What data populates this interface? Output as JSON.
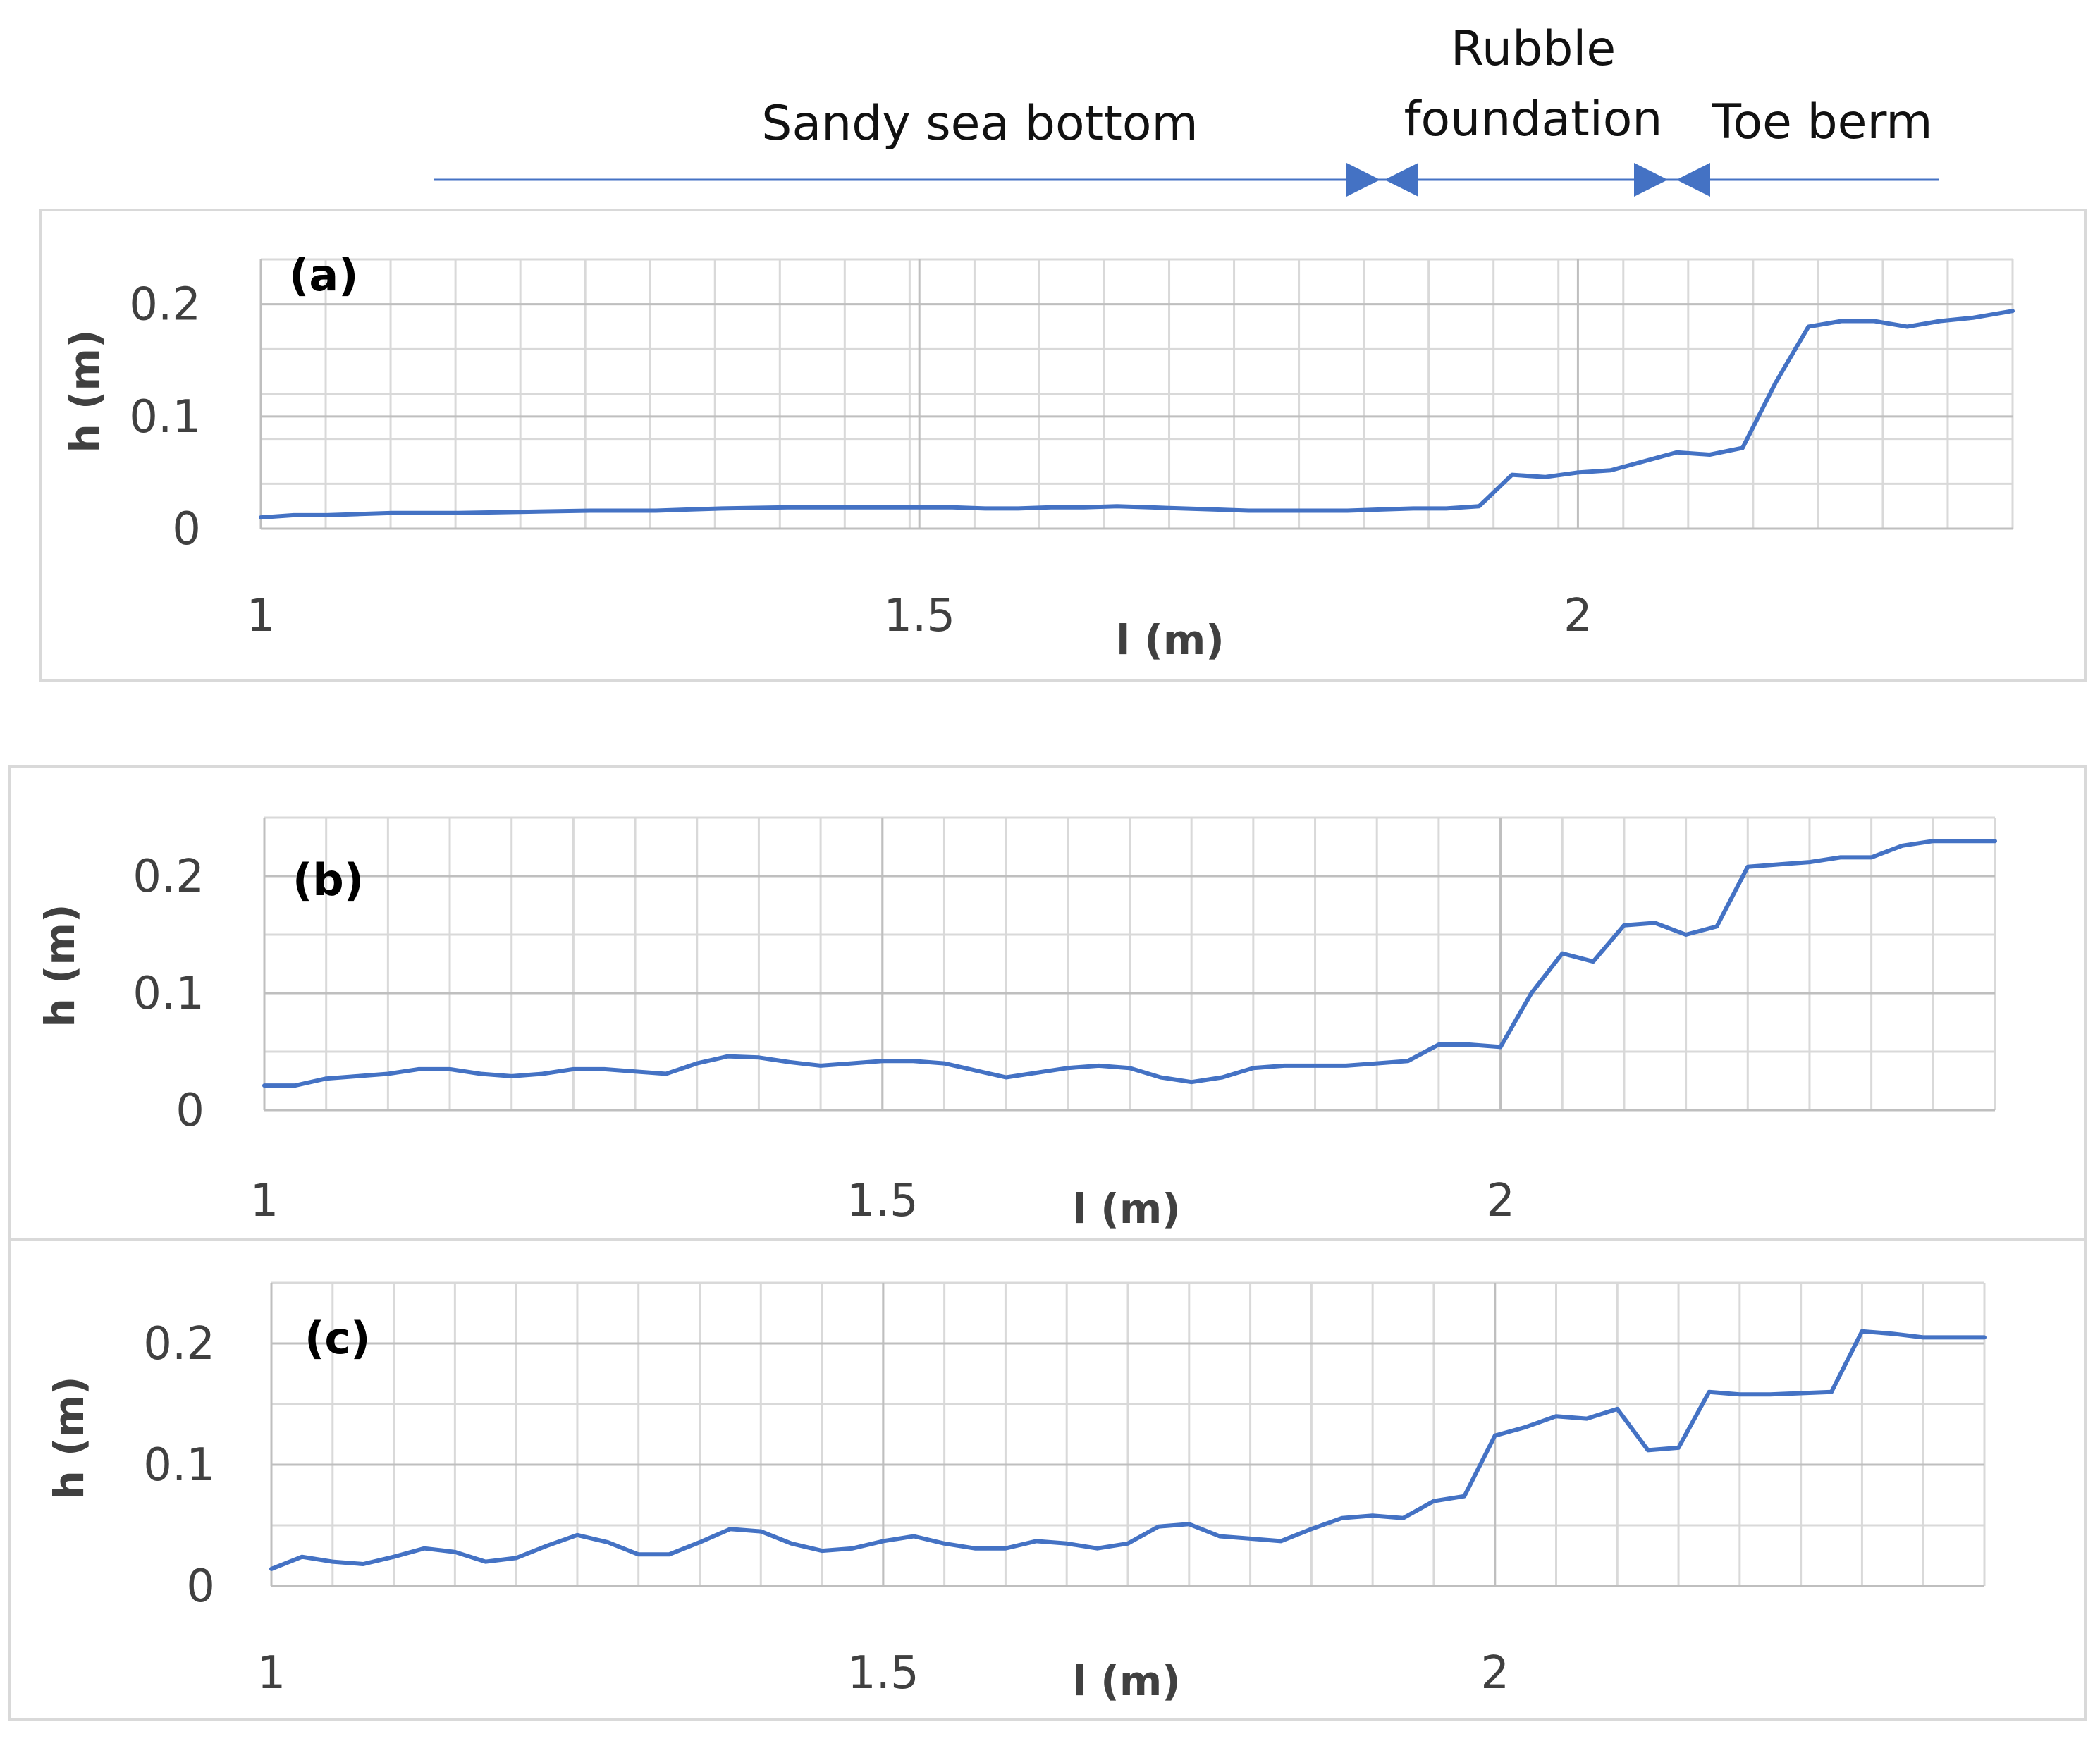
{
  "annotations": {
    "zones": [
      {
        "id": "sandy",
        "label": "Sandy sea bottom",
        "x_from": 1.14,
        "x_to": 1.885
      },
      {
        "id": "rubble",
        "label_line1": "Rubble",
        "label_line2": "foundation",
        "x_from": 1.885,
        "x_to": 2.125
      },
      {
        "id": "toe",
        "label": "Toe berm",
        "x_from": 2.125,
        "x_to": 2.36
      }
    ],
    "color": "#4472c4"
  },
  "chart_data": [
    {
      "type": "line",
      "panel_label": "(a)",
      "xlabel": "l (m)",
      "ylabel": "h (m)",
      "xlim": [
        1,
        2.33
      ],
      "ylim": [
        0,
        0.24
      ],
      "x_tick_labels": [
        "1",
        "1.5",
        "2"
      ],
      "y_tick_labels": [
        "0",
        "0.1",
        "0.2"
      ],
      "grid": true,
      "line_color": "#4472c4",
      "series": [
        {
          "x": [
            1.0,
            1.025,
            1.05,
            1.075,
            1.1,
            1.15,
            1.2,
            1.25,
            1.3,
            1.325,
            1.35,
            1.4,
            1.45,
            1.5,
            1.525,
            1.55,
            1.575,
            1.6,
            1.625,
            1.65,
            1.675,
            1.7,
            1.725,
            1.75,
            1.775,
            1.8,
            1.825,
            1.85,
            1.875,
            1.9,
            1.925,
            1.95,
            1.975,
            2.0,
            2.025,
            2.05,
            2.075,
            2.1,
            2.125,
            2.15,
            2.175,
            2.2,
            2.225,
            2.25,
            2.275,
            2.3,
            2.33
          ],
          "y": [
            0.01,
            0.012,
            0.012,
            0.013,
            0.014,
            0.014,
            0.015,
            0.016,
            0.016,
            0.017,
            0.018,
            0.019,
            0.019,
            0.019,
            0.019,
            0.018,
            0.018,
            0.019,
            0.019,
            0.02,
            0.019,
            0.018,
            0.017,
            0.016,
            0.016,
            0.016,
            0.016,
            0.017,
            0.018,
            0.018,
            0.02,
            0.048,
            0.046,
            0.05,
            0.052,
            0.06,
            0.068,
            0.066,
            0.072,
            0.13,
            0.18,
            0.185,
            0.185,
            0.18,
            0.185,
            0.188,
            0.194
          ]
        }
      ]
    },
    {
      "type": "line",
      "panel_label": "(b)",
      "xlabel": "l (m)",
      "ylabel": "h (m)",
      "xlim": [
        1,
        2.4
      ],
      "ylim": [
        0,
        0.25
      ],
      "x_tick_labels": [
        "1",
        "1.5",
        "2"
      ],
      "y_tick_labels": [
        "0",
        "0.1",
        "0.2"
      ],
      "grid": true,
      "line_color": "#4472c4",
      "series": [
        {
          "x": [
            1.0,
            1.025,
            1.05,
            1.075,
            1.1,
            1.125,
            1.15,
            1.175,
            1.2,
            1.225,
            1.25,
            1.275,
            1.3,
            1.325,
            1.35,
            1.375,
            1.4,
            1.425,
            1.45,
            1.475,
            1.5,
            1.525,
            1.55,
            1.575,
            1.6,
            1.625,
            1.65,
            1.675,
            1.7,
            1.725,
            1.75,
            1.775,
            1.8,
            1.825,
            1.85,
            1.875,
            1.9,
            1.925,
            1.95,
            1.975,
            2.0,
            2.025,
            2.05,
            2.075,
            2.1,
            2.125,
            2.15,
            2.175,
            2.2,
            2.225,
            2.25,
            2.275,
            2.3,
            2.325,
            2.35,
            2.375,
            2.4
          ],
          "y": [
            0.021,
            0.021,
            0.027,
            0.029,
            0.031,
            0.035,
            0.035,
            0.031,
            0.029,
            0.031,
            0.035,
            0.035,
            0.033,
            0.031,
            0.04,
            0.046,
            0.045,
            0.041,
            0.038,
            0.04,
            0.042,
            0.042,
            0.04,
            0.034,
            0.028,
            0.032,
            0.036,
            0.038,
            0.036,
            0.028,
            0.024,
            0.028,
            0.036,
            0.038,
            0.038,
            0.038,
            0.04,
            0.042,
            0.056,
            0.056,
            0.054,
            0.1,
            0.134,
            0.127,
            0.158,
            0.16,
            0.15,
            0.157,
            0.208,
            0.21,
            0.212,
            0.216,
            0.216,
            0.226,
            0.23,
            0.23,
            0.23
          ]
        }
      ]
    },
    {
      "type": "line",
      "panel_label": "(c)",
      "xlabel": "l (m)",
      "ylabel": "h (m)",
      "xlim": [
        1,
        2.4
      ],
      "ylim": [
        0,
        0.25
      ],
      "x_tick_labels": [
        "1",
        "1.5",
        "2"
      ],
      "y_tick_labels": [
        "0",
        "0.1",
        "0.2"
      ],
      "grid": true,
      "line_color": "#4472c4",
      "series": [
        {
          "x": [
            1.0,
            1.025,
            1.05,
            1.075,
            1.1,
            1.125,
            1.15,
            1.175,
            1.2,
            1.225,
            1.25,
            1.275,
            1.3,
            1.325,
            1.35,
            1.375,
            1.4,
            1.425,
            1.45,
            1.475,
            1.5,
            1.525,
            1.55,
            1.575,
            1.6,
            1.625,
            1.65,
            1.675,
            1.7,
            1.725,
            1.75,
            1.775,
            1.8,
            1.825,
            1.85,
            1.875,
            1.9,
            1.925,
            1.95,
            1.975,
            2.0,
            2.025,
            2.05,
            2.075,
            2.1,
            2.125,
            2.15,
            2.175,
            2.2,
            2.225,
            2.25,
            2.275,
            2.3,
            2.325,
            2.35,
            2.375,
            2.4
          ],
          "y": [
            0.014,
            0.024,
            0.02,
            0.018,
            0.024,
            0.031,
            0.028,
            0.02,
            0.023,
            0.033,
            0.042,
            0.036,
            0.026,
            0.026,
            0.036,
            0.047,
            0.045,
            0.035,
            0.029,
            0.031,
            0.037,
            0.041,
            0.035,
            0.031,
            0.031,
            0.037,
            0.035,
            0.031,
            0.035,
            0.049,
            0.051,
            0.041,
            0.039,
            0.037,
            0.047,
            0.056,
            0.058,
            0.056,
            0.07,
            0.074,
            0.124,
            0.131,
            0.14,
            0.138,
            0.146,
            0.112,
            0.114,
            0.16,
            0.158,
            0.158,
            0.159,
            0.16,
            0.21,
            0.208,
            0.205,
            0.205,
            0.205
          ]
        }
      ]
    }
  ]
}
